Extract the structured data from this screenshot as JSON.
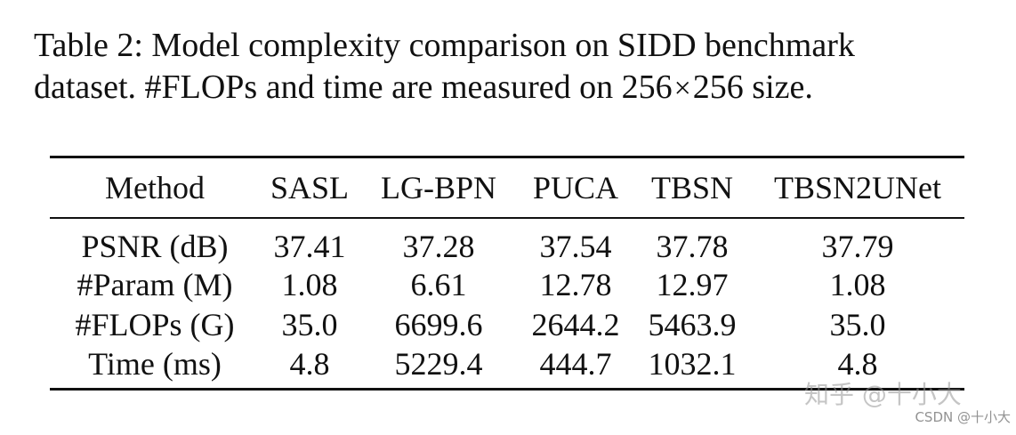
{
  "caption": {
    "line1": "Table 2: Model complexity comparison on SIDD benchmark",
    "line2_pre": "dataset. #FLOPs and time are measured on 256",
    "line2_times": "×",
    "line2_post": "256 size."
  },
  "table": {
    "headers": [
      "Method",
      "SASL",
      "LG-BPN",
      "PUCA",
      "TBSN",
      "TBSN2UNet"
    ],
    "rows": [
      [
        "PSNR (dB)",
        "37.41",
        "37.28",
        "37.54",
        "37.78",
        "37.79"
      ],
      [
        "#Param (M)",
        "1.08",
        "6.61",
        "12.78",
        "12.97",
        "1.08"
      ],
      [
        "#FLOPs (G)",
        "35.0",
        "6699.6",
        "2644.2",
        "5463.9",
        "35.0"
      ],
      [
        "Time (ms)",
        "4.8",
        "5229.4",
        "444.7",
        "1032.1",
        "4.8"
      ]
    ]
  },
  "watermark": {
    "main": "知乎 @十小大",
    "sub": "CSDN @十小大"
  }
}
